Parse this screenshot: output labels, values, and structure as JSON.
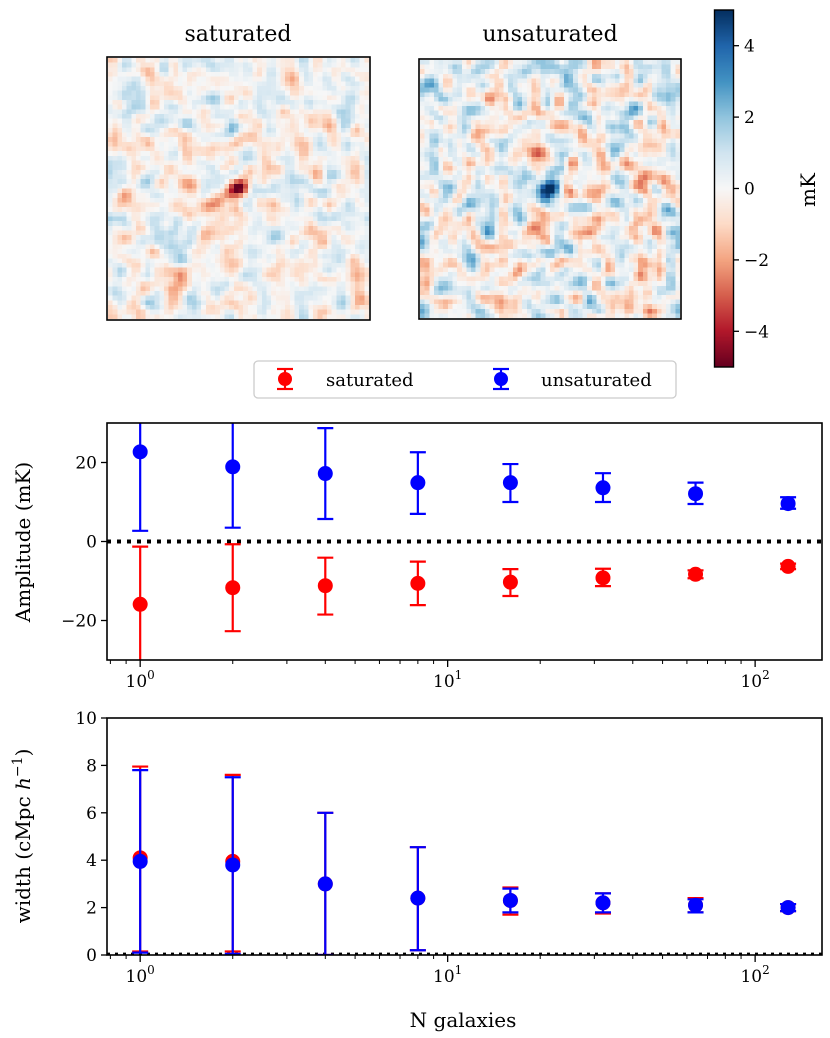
{
  "chart_data": [
    {
      "type": "heatmap",
      "title": "saturated",
      "description_values": "noise map with negative (red) central decrement",
      "vrange": [
        -5,
        5
      ],
      "colormap": "RdBu"
    },
    {
      "type": "heatmap",
      "title": "unsaturated",
      "vrange": [
        -5,
        5
      ],
      "colormap": "RdBu"
    },
    {
      "type": "colorbar",
      "label": "mK",
      "range": [
        -5,
        5
      ],
      "ticks": [
        4,
        2,
        0,
        -2,
        -4
      ],
      "tick_labels": [
        "4",
        "2",
        "0",
        "−2",
        "−4"
      ]
    },
    {
      "type": "scatter",
      "ylabel": "Amplitude (mK)",
      "xscale": "log",
      "xlim": [
        0.78,
        165
      ],
      "ylim": [
        -30,
        30
      ],
      "yticks": [
        20,
        0,
        -20
      ],
      "ytick_labels": [
        "20",
        "0",
        "−20"
      ],
      "xtick_labels": [
        "10",
        "10",
        "10"
      ],
      "xtick_exps": [
        "0",
        "1",
        "2"
      ],
      "xticks": [
        1,
        10,
        100
      ],
      "hline": 0,
      "x": [
        1,
        2,
        4,
        8,
        16,
        32,
        64,
        128
      ],
      "series": [
        {
          "name": "saturated",
          "color": "#ff0000",
          "values": [
            -15.9,
            -11.7,
            -11.2,
            -10.6,
            -10.3,
            -9.2,
            -8.3,
            -6.3
          ],
          "lower": [
            -32,
            -22.7,
            -18.5,
            -16.1,
            -13.8,
            -11.3,
            -9.3,
            -7.0
          ],
          "upper": [
            -1.3,
            -0.7,
            -4.1,
            -5.1,
            -7.0,
            -6.9,
            -7.3,
            -5.6
          ]
        },
        {
          "name": "unsaturated",
          "color": "#0000ff",
          "values": [
            22.7,
            18.9,
            17.2,
            14.9,
            14.9,
            13.6,
            12.1,
            9.6
          ],
          "lower": [
            2.7,
            3.5,
            5.7,
            7.0,
            10.0,
            10.0,
            9.5,
            8.3
          ],
          "upper": [
            42,
            34,
            28.7,
            22.6,
            19.6,
            17.3,
            14.9,
            11.2
          ]
        }
      ]
    },
    {
      "type": "scatter",
      "xlabel": "N galaxies",
      "ylabel": "width (cMpc h⁻¹)",
      "ylabel_main": "width (cMpc ",
      "ylabel_h": "h",
      "ylabel_exp": "−1",
      "ylabel_close": ")",
      "xscale": "log",
      "xlim": [
        0.78,
        165
      ],
      "ylim": [
        0,
        10
      ],
      "yticks": [
        0,
        2,
        4,
        6,
        8,
        10
      ],
      "ytick_labels": [
        "0",
        "2",
        "4",
        "6",
        "8",
        "10"
      ],
      "xtick_labels": [
        "10",
        "10",
        "10"
      ],
      "xtick_exps": [
        "0",
        "1",
        "2"
      ],
      "xticks": [
        1,
        10,
        100
      ],
      "hline": 0.05,
      "x": [
        1,
        2,
        4,
        8,
        16,
        32,
        64,
        128
      ],
      "series": [
        {
          "name": "saturated",
          "color": "#ff0000",
          "values": [
            4.1,
            3.95,
            3.0,
            2.4,
            2.3,
            2.2,
            2.1,
            2.0
          ],
          "lower": [
            0.15,
            0.15,
            0.0,
            0.2,
            1.7,
            1.75,
            1.8,
            1.85
          ],
          "upper": [
            7.95,
            7.6,
            6.0,
            4.55,
            2.85,
            2.6,
            2.4,
            2.15
          ]
        },
        {
          "name": "unsaturated",
          "color": "#0000ff",
          "values": [
            3.95,
            3.8,
            3.0,
            2.4,
            2.3,
            2.2,
            2.1,
            2.0
          ],
          "lower": [
            0.1,
            0.05,
            0.0,
            0.2,
            1.8,
            1.8,
            1.8,
            1.85
          ],
          "upper": [
            7.8,
            7.5,
            6.0,
            4.55,
            2.8,
            2.6,
            2.35,
            2.15
          ]
        }
      ]
    }
  ],
  "legend": {
    "items": [
      "saturated",
      "unsaturated"
    ],
    "placement": "between-panels-center"
  }
}
